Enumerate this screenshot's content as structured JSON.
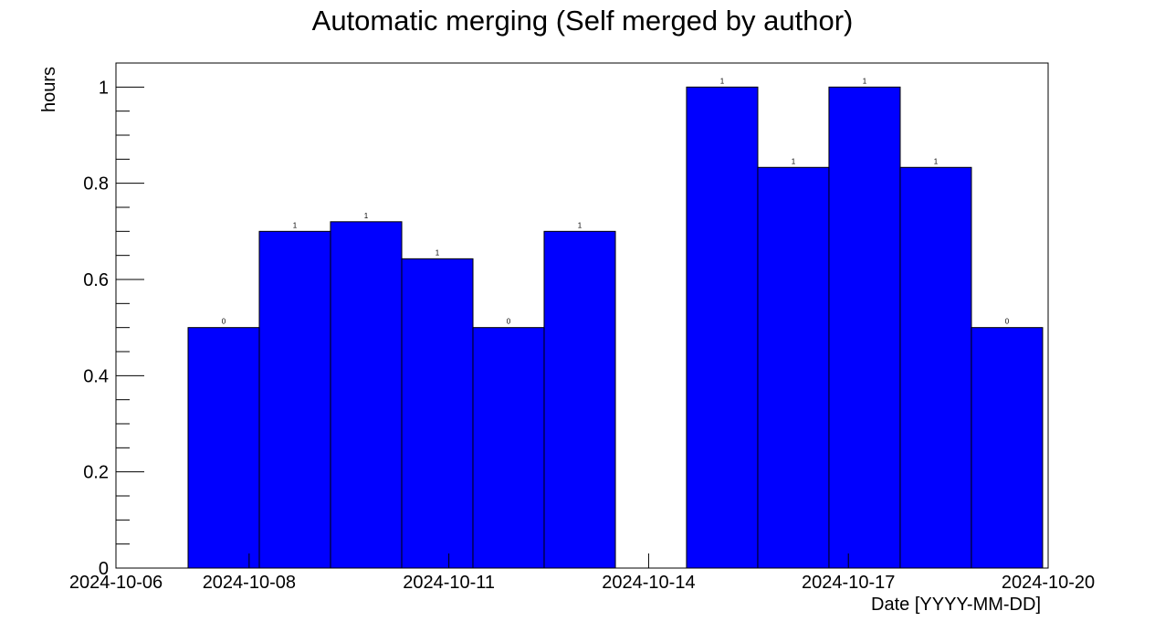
{
  "chart_data": {
    "type": "bar",
    "title": "Automatic merging (Self merged by author)",
    "xlabel": "Date [YYYY-MM-DD]",
    "ylabel": "hours",
    "colors": {
      "bar_fill": "#0000ff",
      "bar_stroke": "#000000",
      "axis": "#000000",
      "background": "#ffffff"
    },
    "grid": false,
    "legend": "none",
    "xlim": [
      "2024-10-06",
      "2024-10-20"
    ],
    "ylim": [
      0,
      1.05
    ],
    "x_ticks": [
      "2024-10-06",
      "2024-10-08",
      "2024-10-11",
      "2024-10-14",
      "2024-10-17",
      "2024-10-20"
    ],
    "y_ticks": [
      0,
      0.2,
      0.4,
      0.6,
      0.8,
      1
    ],
    "y_tick_labels": [
      "0",
      "0.2",
      "0.4",
      "0.6",
      "0.8",
      "1"
    ],
    "bin_width_days": 1.07,
    "bins": [
      {
        "start": "2024-10-07 02:00",
        "value": 0.5,
        "label": "0"
      },
      {
        "start": "2024-10-08 03:40",
        "value": 0.7,
        "label": "1"
      },
      {
        "start": "2024-10-09 05:20",
        "value": 0.72,
        "label": "1"
      },
      {
        "start": "2024-10-10 07:00",
        "value": 0.643,
        "label": "1"
      },
      {
        "start": "2024-10-11 08:40",
        "value": 0.5,
        "label": "0"
      },
      {
        "start": "2024-10-12 10:20",
        "value": 0.7,
        "label": "1"
      },
      {
        "start": "2024-10-13 12:00",
        "value": 0,
        "label": ""
      },
      {
        "start": "2024-10-14 13:40",
        "value": 1.0,
        "label": "1"
      },
      {
        "start": "2024-10-15 15:20",
        "value": 0.833,
        "label": "1"
      },
      {
        "start": "2024-10-16 17:00",
        "value": 1.0,
        "label": "1"
      },
      {
        "start": "2024-10-17 18:40",
        "value": 0.833,
        "label": "1"
      },
      {
        "start": "2024-10-18 20:20",
        "value": 0.5,
        "label": "0"
      }
    ]
  }
}
